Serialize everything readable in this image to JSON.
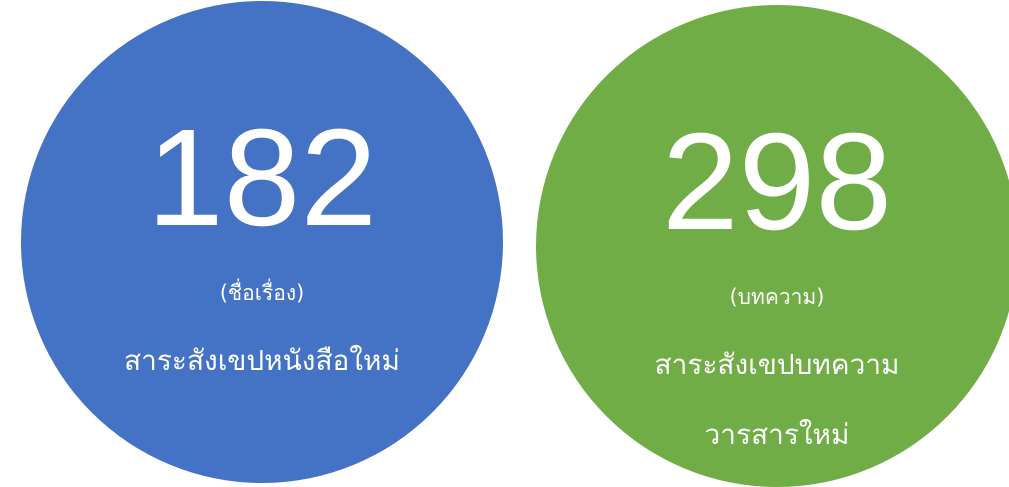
{
  "cards": [
    {
      "number": 182,
      "unit": "(ชื่อเรื่อง)",
      "label_lines": [
        "สาระสังเขปหนังสือใหม่"
      ],
      "color": "#4472c4"
    },
    {
      "number": 298,
      "unit": "(บทความ)",
      "label_lines": [
        "สาระสังเขปบทความ",
        "วารสารใหม่"
      ],
      "color": "#70ad47"
    }
  ]
}
